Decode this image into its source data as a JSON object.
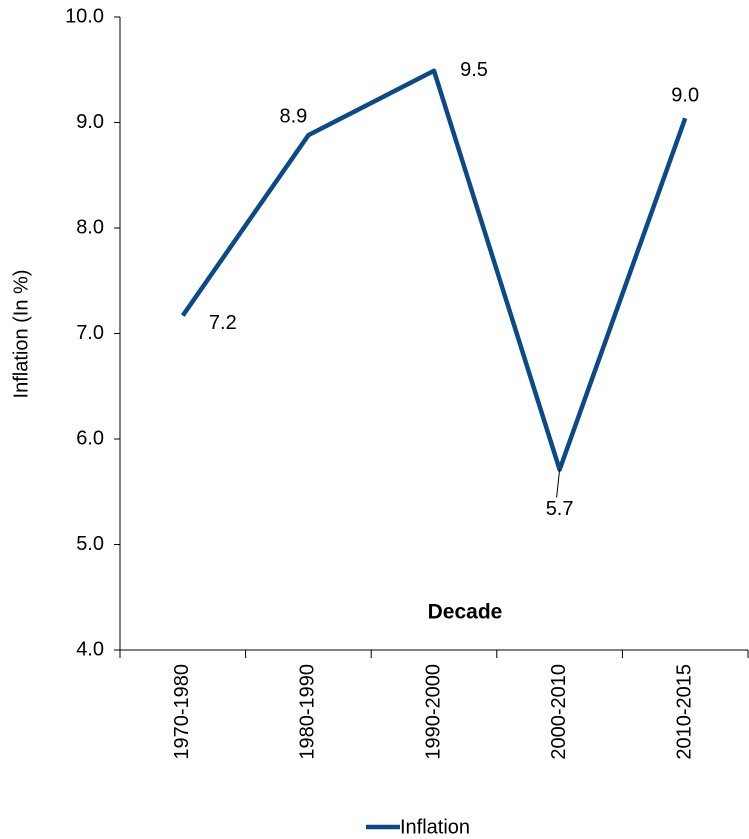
{
  "chart_data": {
    "type": "line",
    "x_label": "Decade",
    "y_label": "Inflation (In %)",
    "categories": [
      "1970-1980",
      "1980-1990",
      "1990-2000",
      "2000-2010",
      "2010-2015"
    ],
    "series": [
      {
        "name": "Inflation",
        "color": "#0b4a86",
        "values": [
          7.17,
          8.88,
          9.49,
          5.71,
          9.04
        ],
        "value_labels": [
          "7.2",
          "8.9",
          "9.5",
          "5.7",
          "9.0"
        ]
      }
    ],
    "ylim": [
      4,
      10
    ],
    "yticks": [
      {
        "value": 4,
        "label": "4.0"
      },
      {
        "value": 5,
        "label": "5.0"
      },
      {
        "value": 6,
        "label": "6.0"
      },
      {
        "value": 7,
        "label": "7.0"
      },
      {
        "value": 8,
        "label": "8.0"
      },
      {
        "value": 9,
        "label": "9.0"
      },
      {
        "value": 10,
        "label": "10.0"
      }
    ],
    "legend": "bottom"
  }
}
